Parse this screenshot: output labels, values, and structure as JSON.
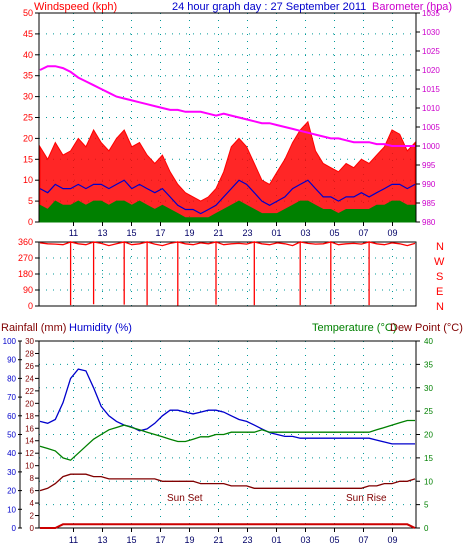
{
  "header": {
    "left_title": "Windspeed (kph)",
    "center_title": "24 hour graph day : 27 September 2011",
    "right_title": "Barometer (hpa)"
  },
  "middle_labels": {
    "compass": [
      "N",
      "W",
      "S",
      "E",
      "N"
    ]
  },
  "lower_header": {
    "rainfall": "Rainfall (mm)",
    "humidity": "Humidity (%)",
    "temperature": "Temperature (°C)",
    "dewpoint": "Dew Point (°C)"
  },
  "annotations": {
    "sunset": "Sun Set",
    "sunrise": "Sun Rise"
  },
  "colors": {
    "wind_gust": "#ff0000",
    "wind_avg": "#0000cc",
    "wind_low": "#008000",
    "barometer": "#ff00ff",
    "direction": "#ff0000",
    "humidity": "#0000cc",
    "temperature": "#008000",
    "dewpoint": "#800000",
    "rainfall": "#cc0000",
    "left_axis": "#ff0000",
    "right_axis": "#cc00cc",
    "title": "#0000cc"
  },
  "chart_data": [
    {
      "type": "line",
      "name": "wind-barometer",
      "x_ticks": [
        "11",
        "13",
        "15",
        "17",
        "19",
        "21",
        "23",
        "01",
        "03",
        "05",
        "07",
        "09"
      ],
      "y_left_ticks": [
        0,
        5,
        10,
        15,
        20,
        25,
        30,
        35,
        40,
        45,
        50
      ],
      "ylim_left": [
        0,
        50
      ],
      "y_right_ticks": [
        980,
        985,
        990,
        995,
        1000,
        1005,
        1010,
        1015,
        1020,
        1025,
        1030,
        1035
      ],
      "ylim_right": [
        980,
        1035
      ],
      "grid": true,
      "series": [
        {
          "name": "Windspeed",
          "color": "#ff0000",
          "values": [
            18,
            15,
            19,
            16,
            17,
            20,
            18,
            22,
            19,
            17,
            20,
            22,
            18,
            19,
            16,
            14,
            16,
            12,
            9,
            7,
            6,
            5,
            6,
            8,
            12,
            18,
            20,
            18,
            14,
            10,
            9,
            12,
            15,
            19,
            22,
            24,
            17,
            14,
            13,
            12,
            14,
            13,
            15,
            14,
            16,
            18,
            22,
            21,
            17,
            19
          ]
        },
        {
          "name": "avg",
          "color": "#0000cc",
          "values": [
            8,
            7,
            9,
            8,
            8,
            9,
            8,
            9,
            9,
            8,
            9,
            10,
            8,
            9,
            8,
            7,
            8,
            6,
            4,
            3,
            3,
            2,
            3,
            4,
            6,
            8,
            10,
            9,
            7,
            5,
            4,
            5,
            6,
            8,
            9,
            10,
            8,
            6,
            6,
            5,
            6,
            6,
            7,
            6,
            7,
            8,
            9,
            9,
            8,
            9
          ]
        },
        {
          "name": "low",
          "color": "#008000",
          "values": [
            4,
            3,
            5,
            4,
            4,
            5,
            4,
            5,
            5,
            4,
            5,
            5,
            4,
            5,
            4,
            3,
            4,
            3,
            2,
            1,
            1,
            1,
            1,
            2,
            3,
            4,
            5,
            4,
            3,
            2,
            2,
            2,
            3,
            4,
            5,
            5,
            4,
            3,
            3,
            2,
            3,
            3,
            3,
            3,
            4,
            4,
            5,
            5,
            4,
            4
          ]
        },
        {
          "name": "Barometer",
          "color": "#ff00ff",
          "axis": "right",
          "values": [
            1020,
            1021,
            1021,
            1020.5,
            1019.5,
            1018,
            1017,
            1016,
            1015,
            1014,
            1013,
            1012.5,
            1012,
            1011.5,
            1011,
            1010.5,
            1010,
            1009.5,
            1009.5,
            1009,
            1009,
            1009,
            1008.5,
            1008,
            1008.5,
            1008,
            1007.5,
            1007,
            1006.5,
            1006,
            1006,
            1005.5,
            1005,
            1004.5,
            1004,
            1003.5,
            1003,
            1002.5,
            1002,
            1002,
            1001.5,
            1001,
            1001,
            1001,
            1000.5,
            1000.5,
            1000,
            1000,
            1000,
            1000
          ]
        }
      ]
    },
    {
      "type": "line",
      "name": "wind-direction",
      "x_ticks": [
        "11",
        "13",
        "15",
        "17",
        "19",
        "21",
        "23",
        "01",
        "03",
        "05",
        "07",
        "09"
      ],
      "y_ticks": [
        0,
        90,
        180,
        270,
        360
      ],
      "ylim": [
        0,
        360
      ],
      "series": [
        {
          "name": "Direction",
          "color": "#ff0000",
          "values": [
            355,
            350,
            348,
            345,
            5,
            350,
            345,
            10,
            352,
            340,
            350,
            8,
            345,
            350,
            5,
            348,
            340,
            352,
            2,
            350,
            345,
            355,
            350,
            8,
            345,
            350,
            352,
            348,
            5,
            350,
            345,
            355,
            350,
            340,
            5,
            352,
            348,
            350,
            10,
            345,
            350,
            352,
            348,
            5,
            350,
            345,
            355,
            350,
            340,
            352
          ]
        }
      ]
    },
    {
      "type": "line",
      "name": "rain-humidity-temperature",
      "x_ticks": [
        "11",
        "13",
        "15",
        "17",
        "19",
        "21",
        "23",
        "01",
        "03",
        "05",
        "07",
        "09"
      ],
      "y_rain_ticks": [
        0,
        2,
        4,
        6,
        8,
        10,
        12,
        14,
        16,
        18,
        20,
        22,
        24,
        26,
        28,
        30
      ],
      "ylim_rain": [
        0,
        30
      ],
      "y_humidity_ticks": [
        0,
        10,
        20,
        30,
        40,
        50,
        60,
        70,
        80,
        90,
        100
      ],
      "ylim_humidity": [
        0,
        100
      ],
      "y_temp_ticks": [
        0,
        5,
        10,
        15,
        20,
        25,
        30,
        35,
        40
      ],
      "ylim_temp": [
        0,
        40
      ],
      "series": [
        {
          "name": "Humidity",
          "color": "#0000cc",
          "axis": "humidity",
          "values": [
            57,
            56,
            58,
            67,
            80,
            85,
            84,
            75,
            65,
            60,
            57,
            55,
            54,
            52,
            53,
            56,
            60,
            63,
            63,
            62,
            61,
            62,
            63,
            63,
            62,
            60,
            58,
            57,
            55,
            53,
            51,
            50,
            49,
            49,
            48,
            48,
            48,
            48,
            48,
            48,
            48,
            48,
            48,
            48,
            47,
            46,
            45,
            45,
            45,
            45
          ]
        },
        {
          "name": "Temperature",
          "color": "#008000",
          "axis": "temp",
          "values": [
            17.5,
            17,
            16.5,
            15,
            14.5,
            16,
            17.5,
            19,
            20,
            21,
            21.5,
            22,
            21.5,
            21,
            20.5,
            20,
            19.5,
            19,
            18.5,
            18.5,
            19,
            19.5,
            19.5,
            20,
            20,
            20.5,
            20.5,
            20.5,
            20.5,
            21,
            20.5,
            20.5,
            20.5,
            20.5,
            20.5,
            20.5,
            20.5,
            20.5,
            20.5,
            20.5,
            20.5,
            20.5,
            20.5,
            20.5,
            21,
            21.5,
            22,
            22.5,
            23,
            23
          ]
        },
        {
          "name": "Dew Point",
          "color": "#800000",
          "axis": "temp",
          "values": [
            8,
            8.5,
            9.5,
            11,
            11.5,
            11.5,
            11.5,
            11,
            11,
            10.5,
            10.5,
            10.5,
            10.5,
            10.5,
            10.5,
            10.5,
            10,
            10,
            10,
            10,
            10,
            9.5,
            9.5,
            9.5,
            9.5,
            9,
            9,
            9,
            8.5,
            8.5,
            8.5,
            8.5,
            8.5,
            8.5,
            8.5,
            8.5,
            8.5,
            8.5,
            8.5,
            8.5,
            8.5,
            8.5,
            8.5,
            9,
            9,
            9.5,
            9.5,
            10,
            10,
            10.5
          ]
        },
        {
          "name": "Rainfall",
          "color": "#cc0000",
          "axis": "rain",
          "values": [
            0,
            0,
            0,
            0.6,
            0.6,
            0.6,
            0.6,
            0.6,
            0.6,
            0.6,
            0.6,
            0.6,
            0.6,
            0.6,
            0.6,
            0.6,
            0.6,
            0.6,
            0.6,
            0.6,
            0.6,
            0.6,
            0.6,
            0.6,
            0.6,
            0.6,
            0.6,
            0.6,
            0.6,
            0.6,
            0.6,
            0.6,
            0.6,
            0.6,
            0.6,
            0.6,
            0.6,
            0.6,
            0.6,
            0.6,
            0.6,
            0.6,
            0.6,
            0.6,
            0.6,
            0.6,
            0.6,
            0.6,
            0.6,
            0
          ]
        }
      ]
    }
  ]
}
